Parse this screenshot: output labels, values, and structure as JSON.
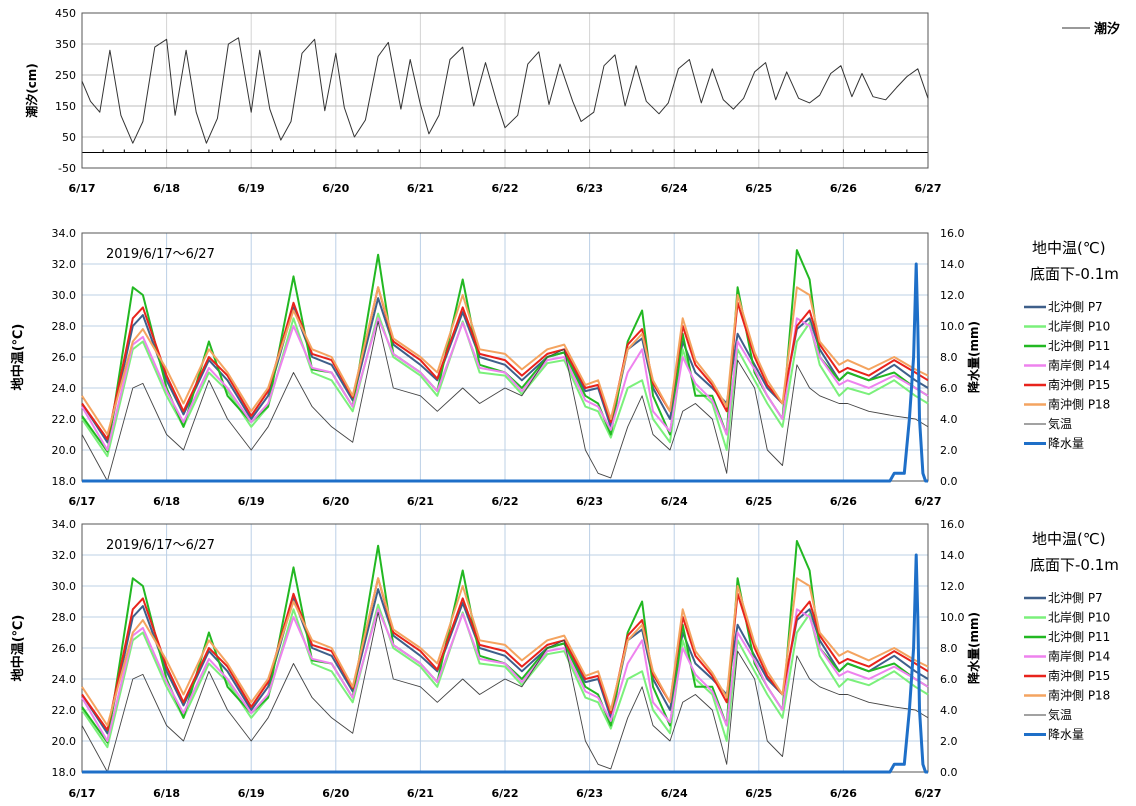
{
  "x_categories": [
    "6/17",
    "6/18",
    "6/19",
    "6/20",
    "6/21",
    "6/22",
    "6/23",
    "6/24",
    "6/25",
    "6/26",
    "6/27"
  ],
  "chart_data": [
    {
      "type": "line",
      "ylabel": "潮汐(cm)",
      "ylim": [
        -50,
        450
      ],
      "yticks": [
        "450",
        "350",
        "250",
        "150",
        "50",
        "-50"
      ],
      "grid": true,
      "legend_position": "top-right",
      "series": [
        {
          "name": "潮汐",
          "color": "#333333",
          "x": [
            0.0,
            0.1,
            0.21,
            0.33,
            0.46,
            0.6,
            0.72,
            0.86,
            1.0,
            1.1,
            1.23,
            1.35,
            1.47,
            1.6,
            1.73,
            1.85,
            2.0,
            2.1,
            2.22,
            2.35,
            2.47,
            2.6,
            2.75,
            2.87,
            3.0,
            3.1,
            3.22,
            3.35,
            3.5,
            3.62,
            3.77,
            3.88,
            4.0,
            4.1,
            4.22,
            4.35,
            4.5,
            4.63,
            4.77,
            4.9,
            5.0,
            5.15,
            5.27,
            5.4,
            5.52,
            5.65,
            5.8,
            5.9,
            6.05,
            6.17,
            6.3,
            6.42,
            6.55,
            6.67,
            6.82,
            6.93,
            7.05,
            7.18,
            7.32,
            7.45,
            7.58,
            7.7,
            7.82,
            7.95,
            8.08,
            8.2,
            8.33,
            8.47,
            8.6,
            8.72,
            8.85,
            8.97,
            9.1,
            9.22,
            9.35,
            9.5,
            9.63,
            9.75,
            9.88,
            10.0
          ],
          "values": [
            230,
            165,
            130,
            330,
            120,
            30,
            100,
            340,
            365,
            120,
            330,
            130,
            30,
            110,
            350,
            370,
            130,
            330,
            140,
            40,
            100,
            320,
            365,
            135,
            320,
            145,
            50,
            105,
            310,
            355,
            140,
            300,
            155,
            60,
            120,
            300,
            340,
            150,
            290,
            165,
            80,
            120,
            285,
            325,
            155,
            285,
            165,
            100,
            130,
            280,
            315,
            150,
            280,
            165,
            125,
            160,
            270,
            300,
            160,
            270,
            170,
            140,
            175,
            260,
            290,
            170,
            260,
            175,
            160,
            185,
            255,
            280,
            180,
            255,
            180,
            170,
            210,
            245,
            270,
            175
          ]
        }
      ]
    },
    {
      "type": "line",
      "annotation": "2019/6/17～6/27",
      "ylabel": "地中温(℃)",
      "y2label": "降水量(mm)",
      "ylim": [
        18,
        34
      ],
      "y2lim": [
        0,
        16
      ],
      "yticks": [
        "34.0",
        "32.0",
        "30.0",
        "28.0",
        "26.0",
        "24.0",
        "22.0",
        "20.0",
        "18.0"
      ],
      "y2ticks": [
        "16.0",
        "14.0",
        "12.0",
        "10.0",
        "8.0",
        "6.0",
        "4.0",
        "2.0",
        "0.0"
      ],
      "legend_title": [
        "地中温(℃)",
        "底面下-0.1m"
      ],
      "legend_position": "right",
      "x": [
        0.0,
        0.3,
        0.6,
        0.72,
        1.0,
        1.2,
        1.5,
        1.72,
        2.0,
        2.2,
        2.5,
        2.72,
        2.95,
        3.2,
        3.5,
        3.68,
        4.0,
        4.2,
        4.5,
        4.7,
        5.0,
        5.2,
        5.5,
        5.7,
        5.95,
        6.1,
        6.25,
        6.45,
        6.62,
        6.75,
        6.95,
        7.1,
        7.25,
        7.45,
        7.62,
        7.75,
        7.95,
        8.1,
        8.28,
        8.45,
        8.6,
        8.72,
        8.95,
        9.05,
        9.3,
        9.6,
        9.85,
        10.0
      ],
      "series": [
        {
          "name": "北沖側 P7",
          "color": "#3e5f8a",
          "values": [
            23.0,
            20.5,
            28.0,
            28.7,
            24.5,
            22.3,
            25.8,
            24.5,
            22.0,
            23.5,
            29.2,
            26.0,
            25.5,
            23.2,
            29.8,
            26.8,
            25.5,
            24.5,
            28.9,
            26.0,
            25.5,
            24.5,
            26.0,
            26.3,
            23.8,
            24.0,
            21.5,
            26.5,
            27.2,
            24.0,
            22.0,
            27.0,
            25.0,
            24.0,
            23.0,
            27.5,
            25.5,
            24.0,
            23.0,
            27.8,
            28.5,
            26.5,
            24.5,
            25.0,
            24.5,
            25.5,
            24.5,
            24.0
          ]
        },
        {
          "name": "北岸側 P10",
          "color": "#7bf07b",
          "values": [
            22.0,
            19.6,
            26.5,
            27.0,
            23.5,
            21.5,
            25.0,
            23.8,
            21.5,
            22.8,
            28.5,
            25.0,
            24.5,
            22.5,
            28.8,
            26.0,
            24.8,
            23.5,
            28.3,
            25.0,
            24.8,
            23.6,
            25.6,
            25.8,
            22.8,
            22.5,
            20.8,
            24.0,
            24.5,
            22.0,
            20.5,
            26.5,
            24.0,
            23.0,
            20.0,
            26.5,
            24.5,
            23.0,
            21.5,
            27.0,
            28.2,
            25.5,
            23.5,
            24.0,
            23.6,
            24.5,
            23.5,
            23.0
          ]
        },
        {
          "name": "北沖側 P11",
          "color": "#22b822",
          "values": [
            22.2,
            19.9,
            30.5,
            30.0,
            24.0,
            21.5,
            27.0,
            23.5,
            21.8,
            22.8,
            31.2,
            25.2,
            25.0,
            22.8,
            32.6,
            26.2,
            25.0,
            23.8,
            31.0,
            25.5,
            25.0,
            24.0,
            26.0,
            26.3,
            23.5,
            23.0,
            21.0,
            27.0,
            29.0,
            23.5,
            21.0,
            27.5,
            23.5,
            23.5,
            21.0,
            30.5,
            25.0,
            23.5,
            22.0,
            32.9,
            31.0,
            26.0,
            24.5,
            25.0,
            24.5,
            25.0,
            24.0,
            23.5
          ]
        },
        {
          "name": "南岸側 P14",
          "color": "#ee82ee",
          "values": [
            22.8,
            20.0,
            26.8,
            27.3,
            23.8,
            21.8,
            25.3,
            24.0,
            21.8,
            23.0,
            28.0,
            25.3,
            25.0,
            22.8,
            28.5,
            26.2,
            25.0,
            23.8,
            28.2,
            25.3,
            25.0,
            23.8,
            25.8,
            26.0,
            23.2,
            22.8,
            21.3,
            25.0,
            26.5,
            22.5,
            21.2,
            26.0,
            24.3,
            23.2,
            21.0,
            27.0,
            25.2,
            23.5,
            22.0,
            28.5,
            28.0,
            26.0,
            24.2,
            24.5,
            24.0,
            24.8,
            24.0,
            23.5
          ]
        },
        {
          "name": "南沖側 P15",
          "color": "#e8231c",
          "values": [
            23.0,
            20.7,
            28.5,
            29.2,
            24.8,
            22.5,
            26.0,
            24.8,
            22.2,
            23.8,
            29.5,
            26.2,
            25.8,
            23.4,
            30.5,
            27.0,
            25.8,
            24.6,
            29.2,
            26.2,
            25.8,
            24.8,
            26.2,
            26.5,
            24.0,
            24.2,
            21.8,
            26.8,
            27.8,
            24.3,
            22.5,
            28.0,
            25.5,
            24.2,
            22.5,
            29.5,
            26.0,
            24.2,
            23.0,
            28.0,
            29.0,
            26.8,
            25.0,
            25.3,
            24.8,
            25.8,
            25.0,
            24.5
          ]
        },
        {
          "name": "南沖側 P18",
          "color": "#f4a460",
          "values": [
            23.5,
            21.0,
            27.0,
            27.8,
            25.2,
            23.0,
            26.5,
            25.0,
            22.5,
            24.0,
            29.0,
            26.5,
            26.0,
            23.5,
            30.5,
            27.2,
            26.0,
            25.0,
            30.0,
            26.5,
            26.2,
            25.2,
            26.5,
            26.8,
            24.2,
            24.5,
            22.0,
            26.5,
            27.5,
            24.5,
            22.5,
            28.5,
            25.8,
            24.4,
            22.8,
            30.0,
            26.3,
            24.5,
            23.0,
            30.5,
            30.0,
            27.0,
            25.5,
            25.8,
            25.2,
            26.0,
            25.2,
            24.8
          ]
        },
        {
          "name": "気温",
          "color": "#444444",
          "values": [
            21.0,
            18.0,
            24.0,
            24.3,
            21.0,
            20.0,
            24.5,
            22.0,
            20.0,
            21.5,
            25.0,
            22.8,
            21.5,
            20.5,
            28.3,
            24.0,
            23.5,
            22.5,
            24.0,
            23.0,
            24.0,
            23.5,
            26.0,
            26.5,
            20.0,
            18.5,
            18.2,
            21.5,
            23.5,
            21.0,
            20.0,
            22.5,
            23.0,
            22.0,
            18.5,
            25.8,
            24.0,
            20.0,
            19.0,
            25.5,
            24.0,
            23.5,
            23.0,
            23.0,
            22.5,
            22.2,
            22.0,
            21.5
          ]
        }
      ],
      "rain": {
        "name": "降水量",
        "color": "#1e6fc8",
        "x": [
          0.0,
          9.55,
          9.6,
          9.72,
          9.78,
          9.83,
          9.86,
          9.88,
          9.9,
          9.94,
          9.97,
          10.0
        ],
        "values": [
          0,
          0,
          0.5,
          0.5,
          4.0,
          8.0,
          14.0,
          10.0,
          4.0,
          0.5,
          0,
          0
        ]
      }
    }
  ]
}
